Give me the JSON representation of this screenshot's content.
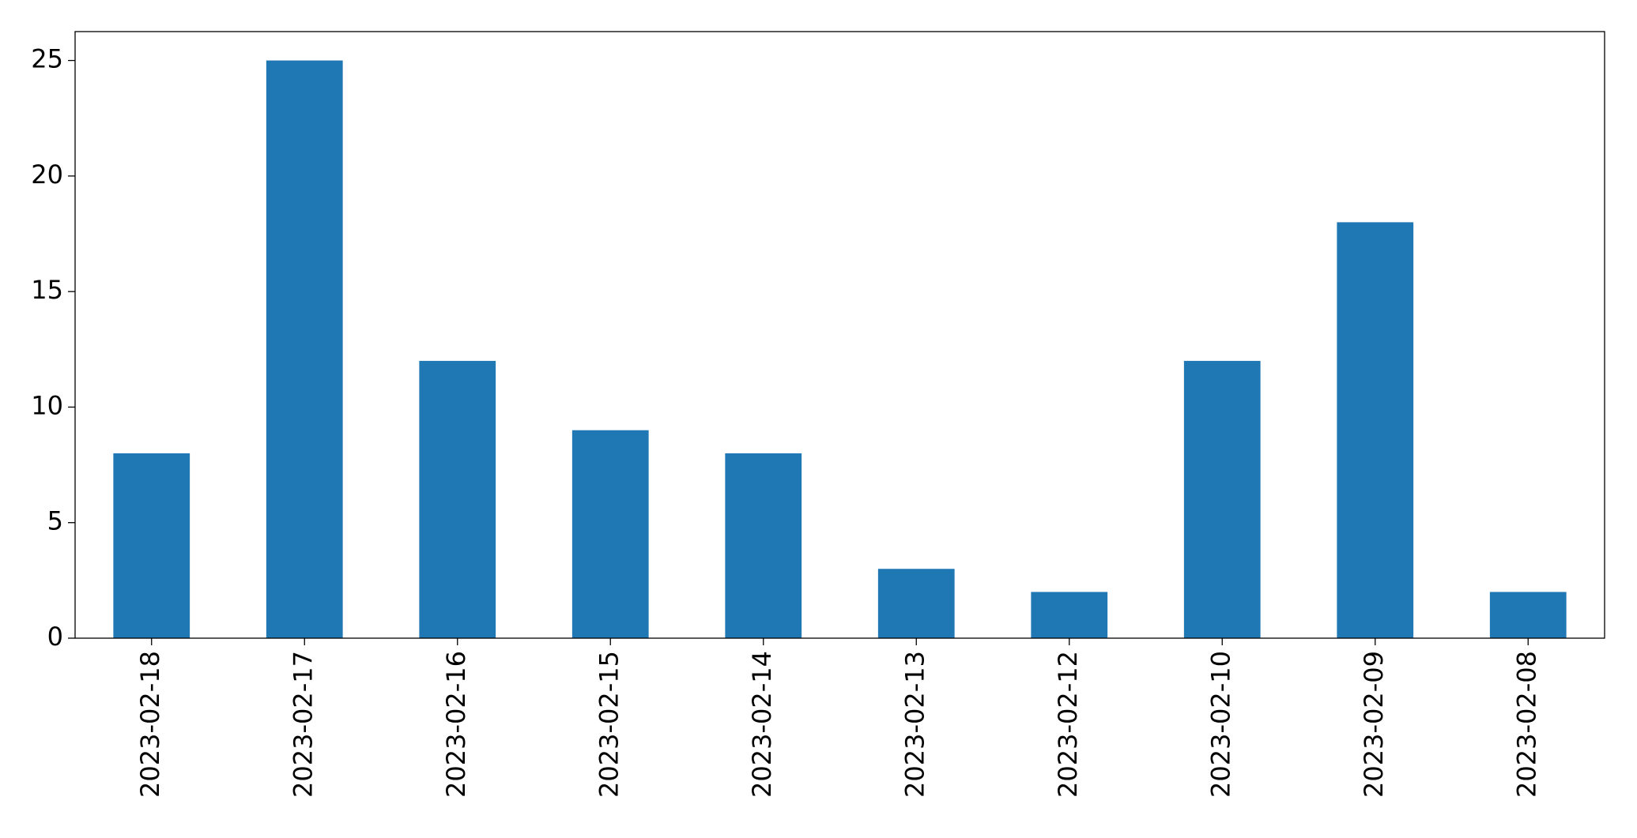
{
  "chart_data": {
    "type": "bar",
    "categories": [
      "2023-02-18",
      "2023-02-17",
      "2023-02-16",
      "2023-02-15",
      "2023-02-14",
      "2023-02-13",
      "2023-02-12",
      "2023-02-10",
      "2023-02-09",
      "2023-02-08"
    ],
    "values": [
      8,
      25,
      12,
      9,
      8,
      3,
      2,
      12,
      18,
      2
    ],
    "color": "#1f77b4",
    "ylim": [
      0,
      26.25
    ],
    "yticks": [
      0,
      5,
      10,
      15,
      20,
      25
    ],
    "grid": false
  }
}
